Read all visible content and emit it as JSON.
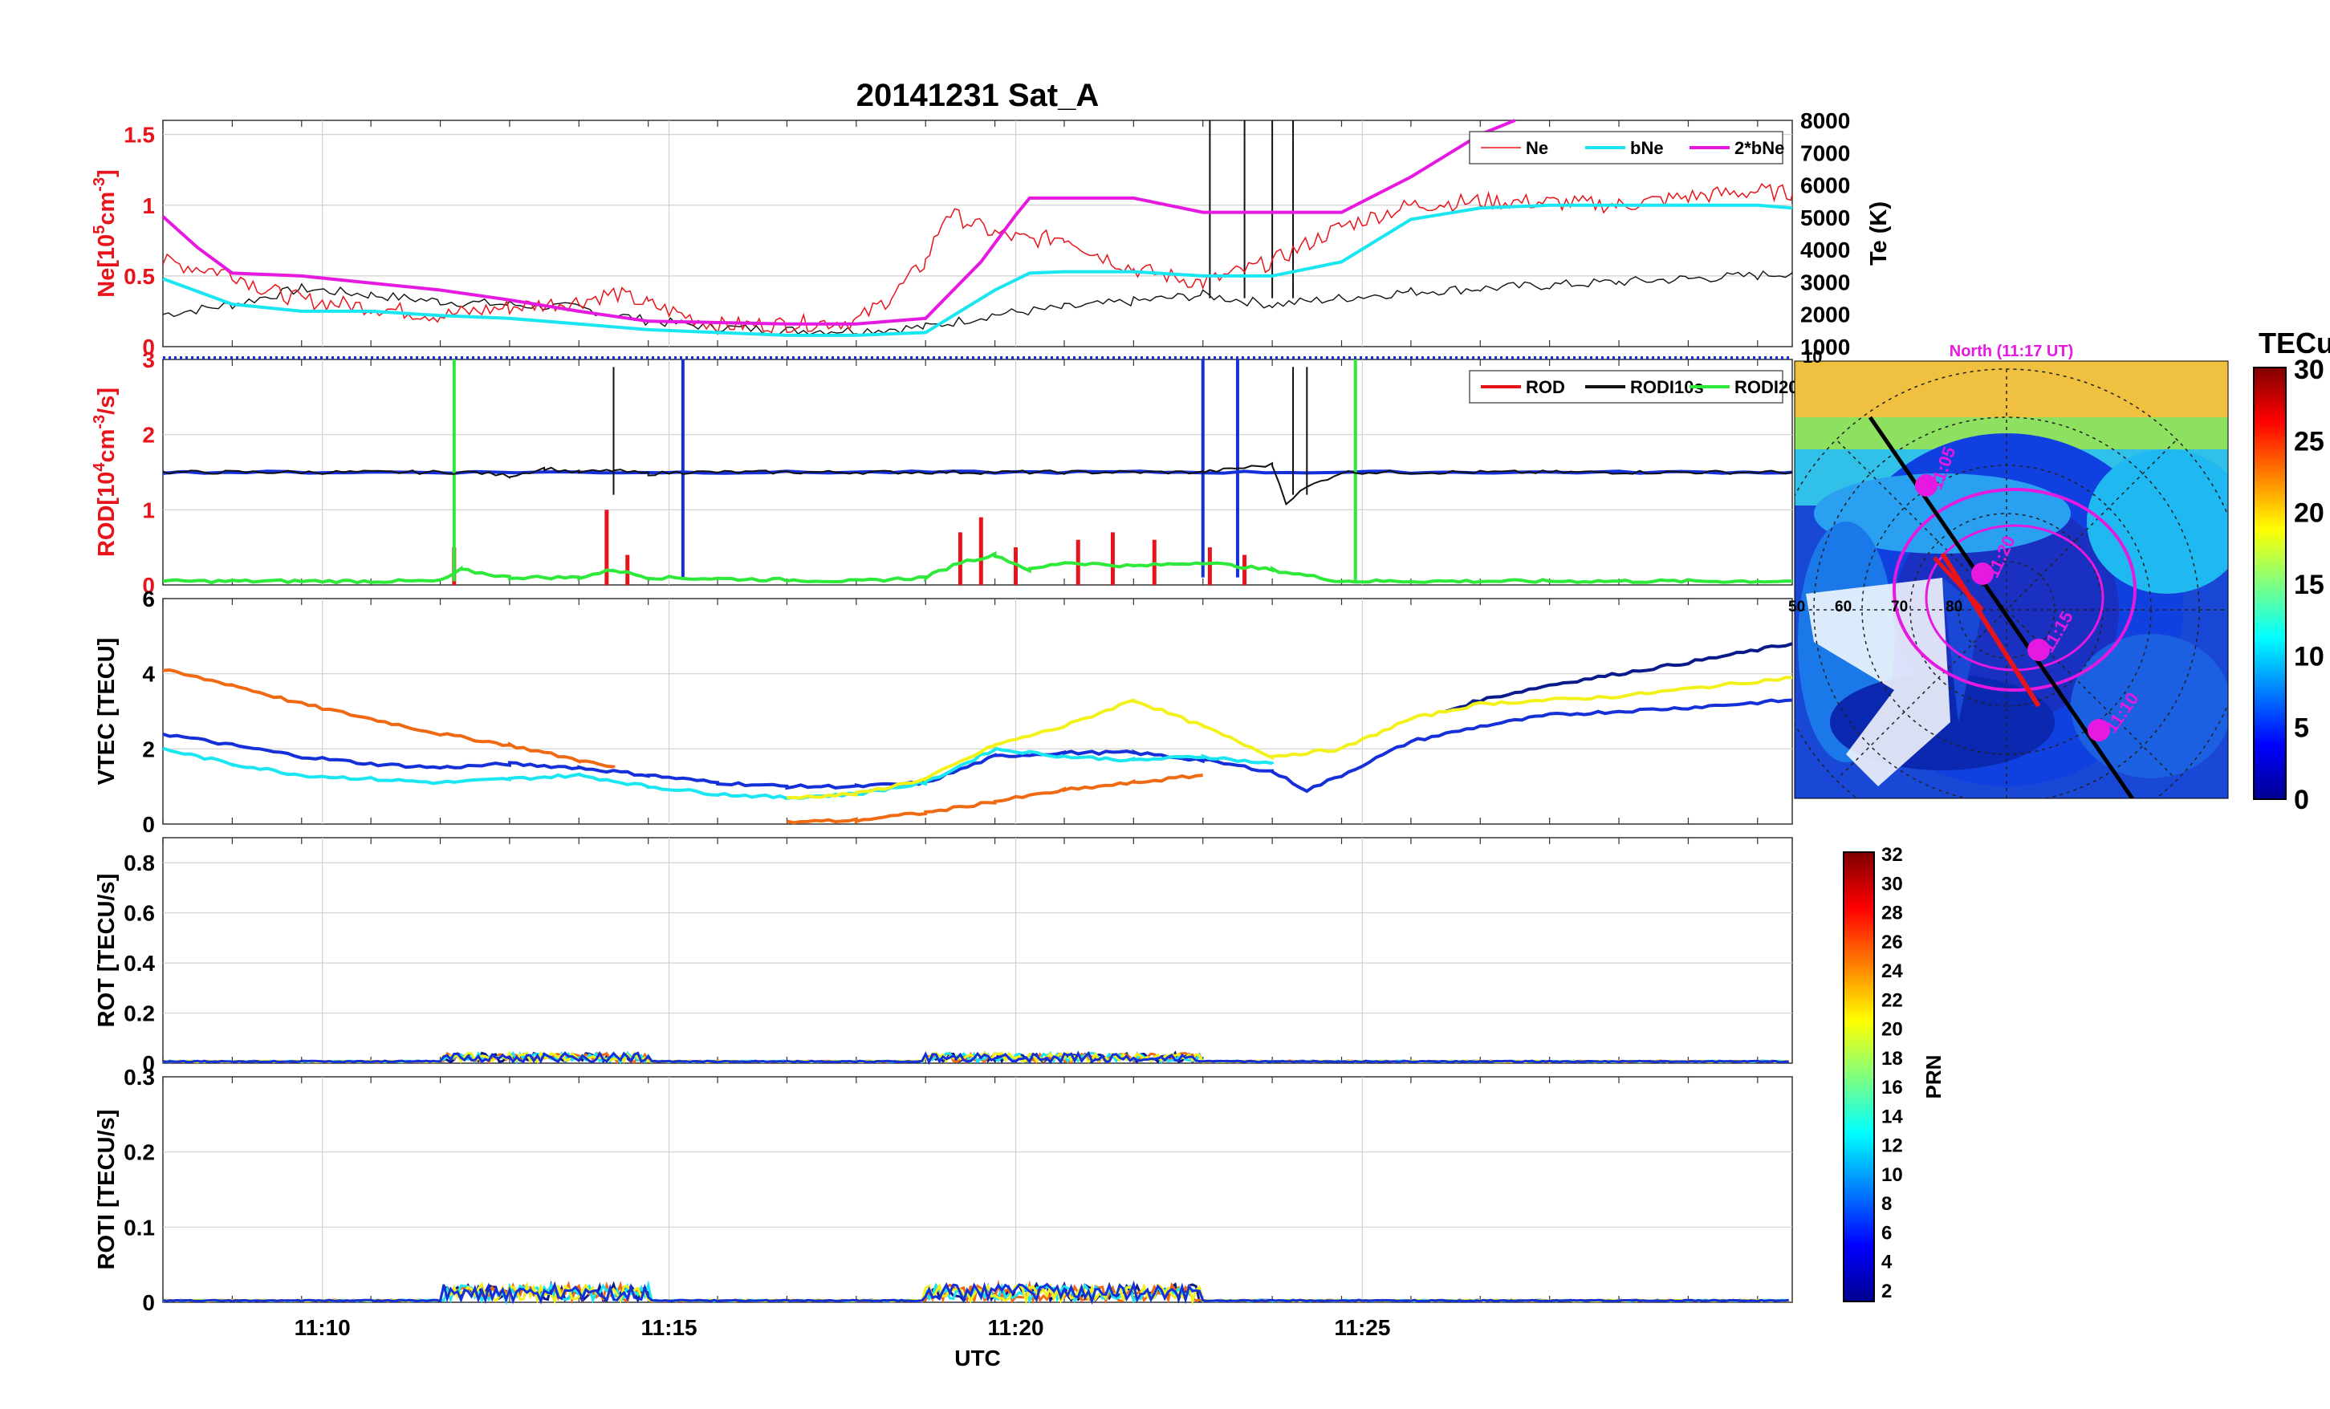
{
  "figure_title": "20141231  Sat_A",
  "colors": {
    "red": "#e8141b",
    "cyan": "#19e6f0",
    "magenta": "#e619e0",
    "blue": "#1530d8",
    "navy": "#0b1a8a",
    "orange": "#f06a14",
    "yellow": "#f2f21a",
    "green": "#2ee83a",
    "black": "#111111"
  },
  "chart_data": [
    {
      "id": "ne",
      "type": "line",
      "ylabel": "Ne[10⁵cm⁻³]",
      "ylabel_parts": [
        "Ne[10",
        "5",
        "cm",
        "-3",
        "]"
      ],
      "ylim": [
        0,
        1.6
      ],
      "yticks": [
        0,
        0.5,
        1,
        1.5
      ],
      "ytick_labels": [
        "0",
        "0.5",
        "1",
        "1.5"
      ],
      "y2label": "Te (K)",
      "y2lim": [
        1000,
        8000
      ],
      "y2ticks": [
        1000,
        2000,
        3000,
        4000,
        5000,
        6000,
        7000,
        8000
      ],
      "y2tick_labels": [
        "1000",
        "2000",
        "3000",
        "4000",
        "5000",
        "6000",
        "7000",
        "8000"
      ],
      "legend": [
        "Ne",
        "bNe",
        "2*bNe"
      ],
      "legend_position": "top-right",
      "series": [
        {
          "name": "Ne",
          "color": "#e8141b",
          "points": [
            [
              0,
              0.6
            ],
            [
              1,
              0.52
            ],
            [
              1.5,
              0.4
            ],
            [
              2,
              0.33
            ],
            [
              3,
              0.28
            ],
            [
              4,
              0.22
            ],
            [
              5,
              0.28
            ],
            [
              6,
              0.32
            ],
            [
              6.5,
              0.38
            ],
            [
              7,
              0.3
            ],
            [
              8,
              0.15
            ],
            [
              9,
              0.16
            ],
            [
              10,
              0.18
            ],
            [
              10.5,
              0.35
            ],
            [
              11,
              0.6
            ],
            [
              11.3,
              0.95
            ],
            [
              12,
              0.8
            ],
            [
              12.5,
              0.75
            ],
            [
              13,
              0.78
            ],
            [
              13.5,
              0.65
            ],
            [
              14,
              0.55
            ],
            [
              15,
              0.45
            ],
            [
              16,
              0.6
            ],
            [
              17,
              0.85
            ],
            [
              18,
              1.0
            ],
            [
              19,
              1.03
            ],
            [
              20,
              1.02
            ],
            [
              21,
              1.0
            ],
            [
              22,
              1.06
            ],
            [
              23,
              1.1
            ],
            [
              23.5,
              1.08
            ]
          ]
        },
        {
          "name": "bNe",
          "color": "#19e6f0",
          "points": [
            [
              0,
              0.48
            ],
            [
              1,
              0.3
            ],
            [
              2,
              0.25
            ],
            [
              3,
              0.25
            ],
            [
              4,
              0.22
            ],
            [
              5,
              0.2
            ],
            [
              6,
              0.16
            ],
            [
              7,
              0.12
            ],
            [
              8,
              0.1
            ],
            [
              9,
              0.08
            ],
            [
              10,
              0.08
            ],
            [
              11,
              0.1
            ],
            [
              12,
              0.4
            ],
            [
              12.5,
              0.52
            ],
            [
              13,
              0.53
            ],
            [
              14,
              0.53
            ],
            [
              15,
              0.5
            ],
            [
              16,
              0.5
            ],
            [
              17,
              0.6
            ],
            [
              18,
              0.9
            ],
            [
              19,
              0.98
            ],
            [
              20,
              1.0
            ],
            [
              21,
              1.0
            ],
            [
              22,
              1.0
            ],
            [
              23,
              1.0
            ],
            [
              23.5,
              0.98
            ]
          ]
        },
        {
          "name": "2*bNe",
          "color": "#e619e0",
          "points": [
            [
              0,
              0.92
            ],
            [
              0.5,
              0.7
            ],
            [
              1,
              0.52
            ],
            [
              2,
              0.5
            ],
            [
              3,
              0.45
            ],
            [
              4,
              0.4
            ],
            [
              5,
              0.33
            ],
            [
              6,
              0.25
            ],
            [
              7,
              0.18
            ],
            [
              8,
              0.17
            ],
            [
              9,
              0.16
            ],
            [
              10,
              0.16
            ],
            [
              11,
              0.2
            ],
            [
              11.8,
              0.6
            ],
            [
              12.3,
              0.93
            ],
            [
              12.5,
              1.05
            ],
            [
              14,
              1.05
            ],
            [
              15,
              0.95
            ],
            [
              16,
              0.95
            ],
            [
              17,
              0.95
            ],
            [
              18,
              1.2
            ],
            [
              19,
              1.5
            ],
            [
              19.5,
              1.6
            ]
          ]
        }
      ],
      "te_series": {
        "name": "Te",
        "color": "#111111",
        "points": [
          [
            0,
            2000
          ],
          [
            1,
            2300
          ],
          [
            2,
            2800
          ],
          [
            3,
            2600
          ],
          [
            4,
            2400
          ],
          [
            5,
            2300
          ],
          [
            6,
            2200
          ],
          [
            7,
            1800
          ],
          [
            8,
            1600
          ],
          [
            9,
            1500
          ],
          [
            10,
            1500
          ],
          [
            11,
            1600
          ],
          [
            12,
            2000
          ],
          [
            13,
            2200
          ],
          [
            14,
            2400
          ],
          [
            15,
            2600
          ],
          [
            16,
            2300
          ],
          [
            17,
            2500
          ],
          [
            18,
            2700
          ],
          [
            19,
            2800
          ],
          [
            20,
            2900
          ],
          [
            21,
            3000
          ],
          [
            22,
            3100
          ],
          [
            23,
            3200
          ],
          [
            23.5,
            3300
          ]
        ]
      }
    },
    {
      "id": "rod",
      "type": "line",
      "ylabel": "ROD[10⁴cm⁻³/s]",
      "ylabel_parts": [
        "ROD[10",
        "4",
        "cm",
        "-3",
        "/s]"
      ],
      "ylim": [
        0,
        3
      ],
      "yticks": [
        0,
        1,
        2,
        3
      ],
      "ytick_labels": [
        "0",
        "1",
        "2",
        "3"
      ],
      "legend": [
        "ROD",
        "RODI10s",
        "RODI20s"
      ],
      "legend_position": "top-right",
      "series": [
        {
          "name": "RODI10s",
          "color": "#111111",
          "points": [
            [
              0,
              1.5
            ],
            [
              4.5,
              1.5
            ],
            [
              5,
              1.45
            ],
            [
              5.5,
              1.55
            ],
            [
              6,
              1.5
            ],
            [
              6.5,
              1.52
            ],
            [
              7,
              1.48
            ],
            [
              7.5,
              1.5
            ],
            [
              15,
              1.5
            ],
            [
              15.5,
              1.55
            ],
            [
              16,
              1.6
            ],
            [
              16.2,
              1.1
            ],
            [
              16.5,
              1.3
            ],
            [
              17,
              1.5
            ],
            [
              23.5,
              1.5
            ]
          ]
        },
        {
          "name": "RODI20s",
          "color": "#2ee83a",
          "points": [
            [
              0,
              0.05
            ],
            [
              4,
              0.05
            ],
            [
              4.3,
              0.2
            ],
            [
              5,
              0.1
            ],
            [
              6,
              0.1
            ],
            [
              6.5,
              0.2
            ],
            [
              7,
              0.1
            ],
            [
              10,
              0.05
            ],
            [
              11,
              0.1
            ],
            [
              11.5,
              0.3
            ],
            [
              12,
              0.4
            ],
            [
              12.5,
              0.2
            ],
            [
              13,
              0.3
            ],
            [
              14,
              0.25
            ],
            [
              15,
              0.3
            ],
            [
              16,
              0.2
            ],
            [
              17,
              0.05
            ],
            [
              23.5,
              0.05
            ]
          ]
        }
      ],
      "blue_baseline": 1.5,
      "blue_top": 3.0,
      "rod_spikes": [
        [
          4.2,
          0.5
        ],
        [
          6.4,
          1.0
        ],
        [
          6.7,
          0.4
        ],
        [
          11.5,
          0.7
        ],
        [
          11.8,
          0.9
        ],
        [
          12.3,
          0.5
        ],
        [
          13.2,
          0.6
        ],
        [
          13.7,
          0.7
        ],
        [
          14.3,
          0.6
        ],
        [
          15.1,
          0.5
        ],
        [
          15.6,
          0.4
        ]
      ]
    },
    {
      "id": "vtec",
      "type": "line",
      "ylabel": "VTEC [TECU]",
      "ylim": [
        0,
        6
      ],
      "yticks": [
        0,
        2,
        4,
        6
      ],
      "ytick_labels": [
        "0",
        "2",
        "4",
        "6"
      ],
      "series": [
        {
          "color": "#f06a14",
          "points": [
            [
              0,
              4.1
            ],
            [
              1,
              3.7
            ],
            [
              2,
              3.2
            ],
            [
              3,
              2.8
            ],
            [
              4,
              2.4
            ],
            [
              5,
              2.1
            ],
            [
              6,
              1.7
            ],
            [
              6.5,
              1.5
            ]
          ]
        },
        {
          "color": "#0b1a8a",
          "points": [
            [
              18.5,
              3.0
            ],
            [
              19,
              3.3
            ],
            [
              20,
              3.7
            ],
            [
              21,
              4.0
            ],
            [
              22,
              4.3
            ],
            [
              23.5,
              4.8
            ]
          ]
        },
        {
          "color": "#1530d8",
          "points": [
            [
              0,
              2.4
            ],
            [
              1,
              2.1
            ],
            [
              2,
              1.8
            ],
            [
              3,
              1.6
            ],
            [
              4,
              1.5
            ],
            [
              5,
              1.6
            ],
            [
              6,
              1.5
            ],
            [
              7,
              1.3
            ],
            [
              8,
              1.1
            ],
            [
              9,
              1.0
            ],
            [
              10,
              1.0
            ],
            [
              11,
              1.1
            ],
            [
              12,
              1.8
            ],
            [
              13,
              1.9
            ],
            [
              14,
              1.9
            ],
            [
              15,
              1.7
            ],
            [
              16,
              1.4
            ],
            [
              16.5,
              0.9
            ],
            [
              17,
              1.3
            ],
            [
              18,
              2.2
            ],
            [
              19,
              2.6
            ],
            [
              20,
              2.9
            ],
            [
              21,
              3.0
            ],
            [
              22,
              3.1
            ],
            [
              23.5,
              3.3
            ]
          ]
        },
        {
          "color": "#19e6f0",
          "points": [
            [
              0,
              2.0
            ],
            [
              1,
              1.6
            ],
            [
              2,
              1.3
            ],
            [
              3,
              1.2
            ],
            [
              4,
              1.1
            ],
            [
              5,
              1.2
            ],
            [
              6,
              1.3
            ],
            [
              7,
              1.0
            ],
            [
              8,
              0.8
            ],
            [
              9,
              0.7
            ],
            [
              10,
              0.8
            ],
            [
              11,
              1.1
            ],
            [
              12,
              2.0
            ],
            [
              13,
              1.8
            ],
            [
              14,
              1.7
            ],
            [
              15,
              1.8
            ],
            [
              16,
              1.6
            ]
          ]
        },
        {
          "color": "#f2f21a",
          "points": [
            [
              9,
              0.7
            ],
            [
              10,
              0.8
            ],
            [
              11,
              1.2
            ],
            [
              12,
              2.1
            ],
            [
              13,
              2.6
            ],
            [
              14,
              3.3
            ],
            [
              15,
              2.6
            ],
            [
              16,
              1.8
            ],
            [
              17,
              2.0
            ],
            [
              18,
              2.8
            ],
            [
              19,
              3.2
            ],
            [
              20,
              3.3
            ],
            [
              21,
              3.4
            ],
            [
              22,
              3.6
            ],
            [
              23.5,
              3.9
            ]
          ]
        },
        {
          "color": "#f06a14",
          "points": [
            [
              9,
              0.05
            ],
            [
              10,
              0.1
            ],
            [
              11,
              0.3
            ],
            [
              12,
              0.6
            ],
            [
              13,
              0.9
            ],
            [
              14,
              1.1
            ],
            [
              15,
              1.3
            ]
          ]
        }
      ]
    },
    {
      "id": "rot",
      "type": "line",
      "ylabel": "ROT [TECU/s]",
      "ylim": [
        0,
        0.9
      ],
      "yticks": [
        0,
        0.2,
        0.4,
        0.6,
        0.8
      ],
      "ytick_labels": [
        "0",
        "0.2",
        "0.4",
        "0.6",
        "0.8"
      ]
    },
    {
      "id": "roti",
      "type": "line",
      "ylabel": "ROTI [TECU/s]",
      "ylim": [
        0,
        0.3
      ],
      "yticks": [
        0,
        0.1,
        0.2,
        0.3
      ],
      "ytick_labels": [
        "0",
        "0.1",
        "0.2",
        "0.3"
      ]
    }
  ],
  "x_axis": {
    "label": "UTC",
    "ticks": [
      2.3,
      7.3,
      12.3,
      17.3
    ],
    "tick_labels": [
      "11:10",
      "11:15",
      "11:20",
      "11:25"
    ],
    "xlim": [
      0,
      23.5
    ]
  },
  "prn_colorbar": {
    "label": "PRN",
    "tick_labels": [
      "2",
      "4",
      "6",
      "8",
      "10",
      "12",
      "14",
      "16",
      "18",
      "20",
      "22",
      "24",
      "26",
      "28",
      "30",
      "32"
    ]
  },
  "polar_map": {
    "title": "North (11:17 UT)",
    "lat_labels": [
      "50",
      "60",
      "70",
      "80"
    ],
    "left_top_label": "10",
    "track_labels": [
      "11:05",
      "11:10",
      "11:15",
      "11:20"
    ]
  },
  "tecu_colorbar": {
    "label": "TECu",
    "tick_labels": [
      "0",
      "5",
      "10",
      "15",
      "20",
      "25",
      "30"
    ]
  }
}
